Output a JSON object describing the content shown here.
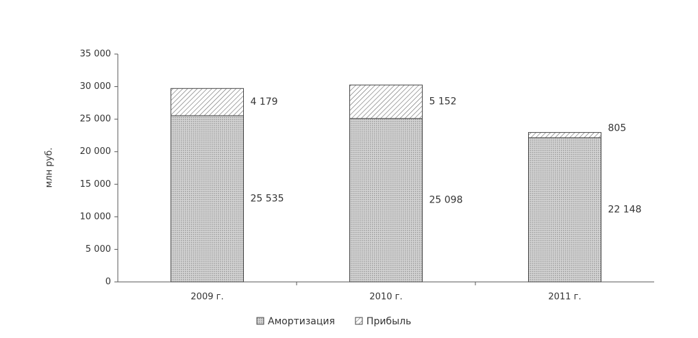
{
  "chart_data": {
    "type": "stacked_bar",
    "y_label": "млн руб.",
    "categories": [
      "2009 г.",
      "2010 г.",
      "2011 г."
    ],
    "series": [
      {
        "name": "Амортизация",
        "color": "#9a9a9a",
        "pattern": "dots",
        "values": [
          25535,
          25098,
          22148
        ],
        "value_labels": [
          "25 535",
          "25 098",
          "22 148"
        ]
      },
      {
        "name": "Прибыль",
        "color": "#666666",
        "pattern": "hatch",
        "values": [
          4179,
          5152,
          805
        ],
        "value_labels": [
          "4 179",
          "5 152",
          "805"
        ]
      }
    ],
    "ylim": [
      0,
      35000
    ],
    "yticks": [
      0,
      {
        "value": 5000,
        "label": "5 000"
      },
      {
        "value": 10000,
        "label": "10 000"
      },
      {
        "value": 15000,
        "label": "15 000"
      },
      {
        "value": 20000,
        "label": "20 000"
      },
      {
        "value": 25000,
        "label": "25 000"
      },
      {
        "value": 30000,
        "label": "30 000"
      },
      {
        "value": 35000,
        "label": "35 000"
      }
    ],
    "legend": "bottom"
  }
}
